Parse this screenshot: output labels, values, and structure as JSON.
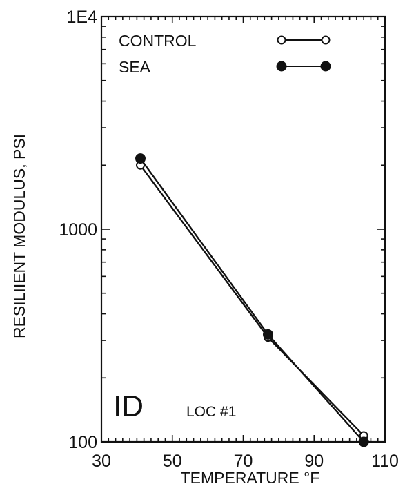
{
  "chart_data": {
    "type": "line",
    "title": "",
    "xlabel": "TEMPERATURE  °F",
    "ylabel": "RESILIIENT MODULUS, PSI",
    "xlim": [
      30,
      110
    ],
    "ylim": [
      100,
      10000
    ],
    "y_scale": "log",
    "x_ticks": [
      30,
      50,
      70,
      90,
      110
    ],
    "x_tick_labels": [
      "30",
      "50",
      "70",
      "90",
      "110"
    ],
    "y_ticks": [
      100,
      1000,
      10000
    ],
    "y_tick_labels": [
      "100",
      "1000",
      "1E4"
    ],
    "grid": false,
    "legend_position": "top-right",
    "annotations": [
      "ID",
      "LOC #1"
    ],
    "series": [
      {
        "name": "CONTROL",
        "marker": "open-circle",
        "x": [
          41,
          77,
          104
        ],
        "y": [
          2000,
          310,
          107
        ]
      },
      {
        "name": "SEA",
        "marker": "filled-circle",
        "x": [
          41,
          77,
          104
        ],
        "y": [
          2150,
          320,
          100
        ]
      }
    ]
  }
}
